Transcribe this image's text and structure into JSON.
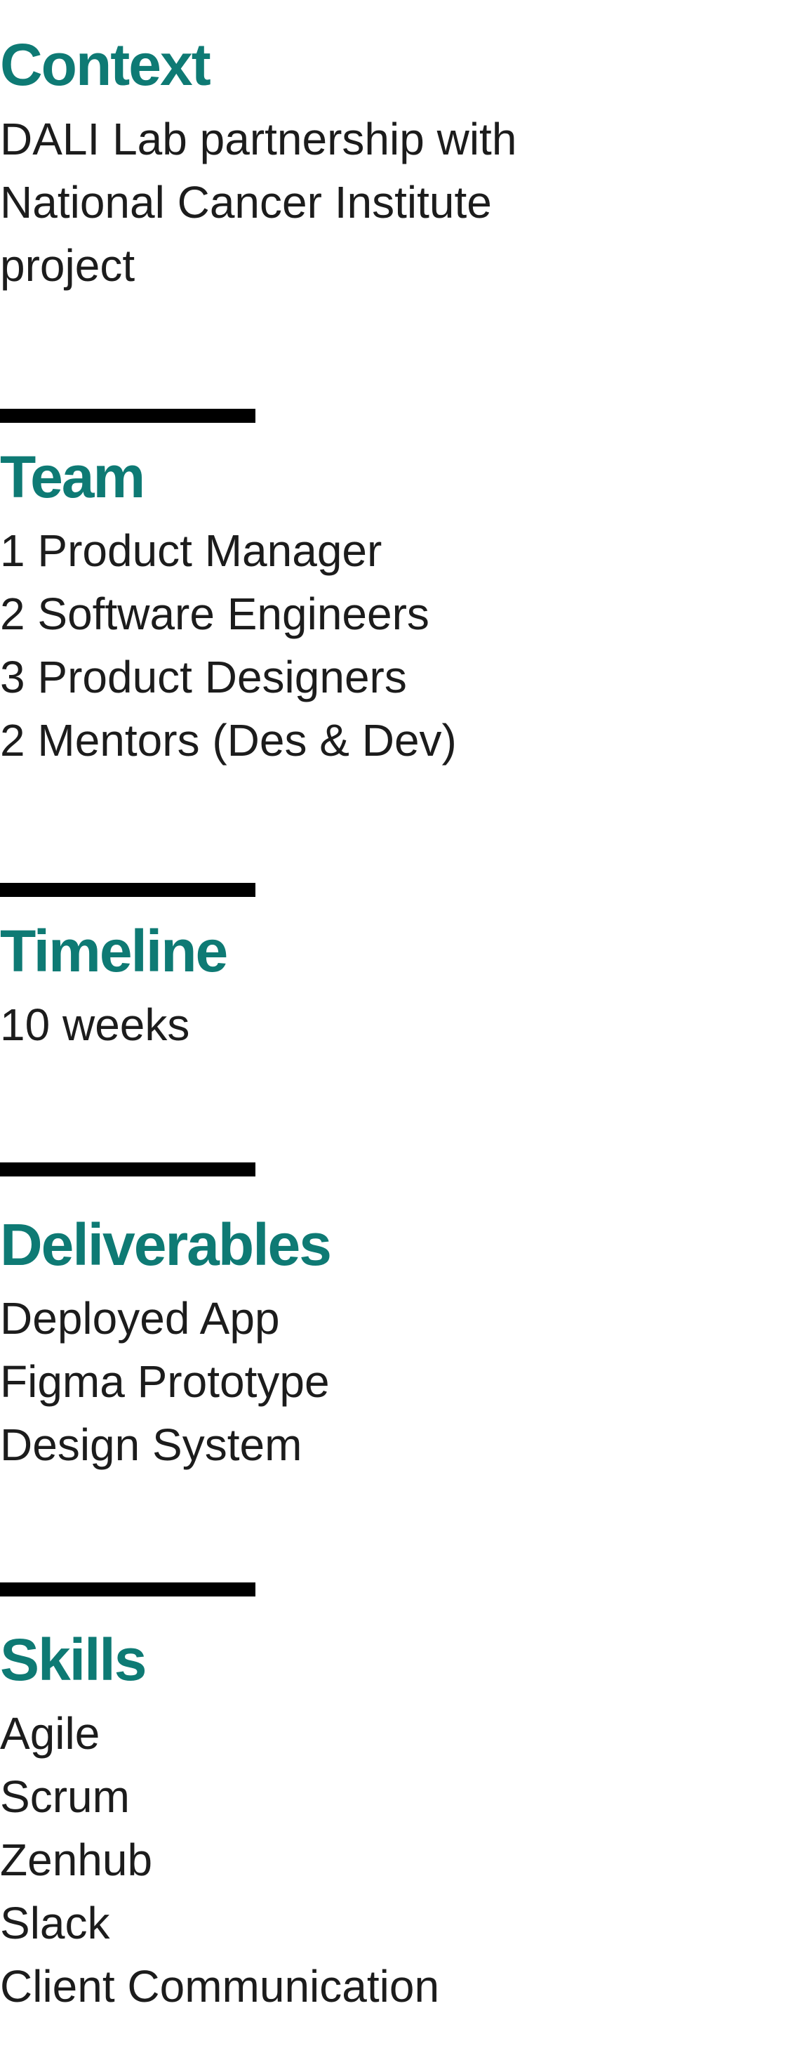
{
  "colors": {
    "heading": "#0E7A74",
    "body_text": "#1C1C1C",
    "rule": "#000000"
  },
  "sections": [
    {
      "title": "Context",
      "lines": [
        "DALI Lab partnership with",
        "National Cancer Institute",
        "project"
      ]
    },
    {
      "title": "Team",
      "lines": [
        "1 Product Manager",
        "2 Software Engineers",
        "3 Product Designers",
        "2 Mentors (Des & Dev)"
      ]
    },
    {
      "title": "Timeline",
      "lines": [
        "10 weeks"
      ]
    },
    {
      "title": "Deliverables",
      "lines": [
        "Deployed App",
        "Figma Prototype",
        "Design System"
      ]
    },
    {
      "title": "Skills",
      "lines": [
        "Agile",
        "Scrum",
        "Zenhub",
        "Slack",
        "Client Communication"
      ]
    }
  ]
}
